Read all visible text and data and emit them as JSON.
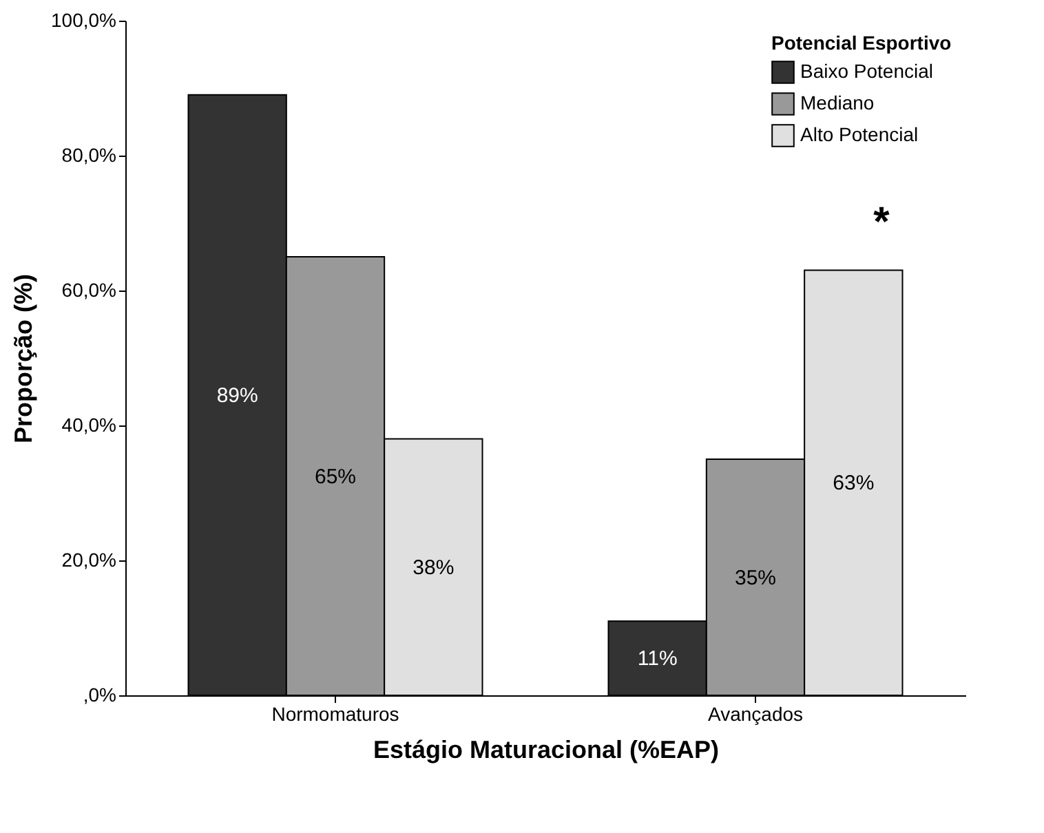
{
  "chart_data": {
    "type": "bar",
    "xlabel": "Estágio Maturacional (%EAP)",
    "ylabel": "Proporção (%)",
    "legend_title": "Potencial Esportivo",
    "categories": [
      "Normomaturos",
      "Avançados"
    ],
    "series": [
      {
        "name": "Baixo Potencial",
        "color": "#333333",
        "values": [
          89,
          11
        ],
        "value_labels": [
          "89%",
          "11%"
        ]
      },
      {
        "name": "Mediano",
        "color": "#999999",
        "values": [
          65,
          35
        ],
        "value_labels": [
          "65%",
          "35%"
        ]
      },
      {
        "name": "Alto Potencial",
        "color": "#e0e0e0",
        "values": [
          38,
          63
        ],
        "value_labels": [
          "38%",
          "63%"
        ]
      }
    ],
    "ylim": [
      0,
      100
    ],
    "yticks": [
      {
        "value": 0,
        "label": ",0%"
      },
      {
        "value": 20,
        "label": "20,0%"
      },
      {
        "value": 40,
        "label": "40,0%"
      },
      {
        "value": 60,
        "label": "60,0%"
      },
      {
        "value": 80,
        "label": "80,0%"
      },
      {
        "value": 100,
        "label": "100,0%"
      }
    ],
    "annotations": [
      "*"
    ],
    "grid": false,
    "legend": "top right"
  }
}
